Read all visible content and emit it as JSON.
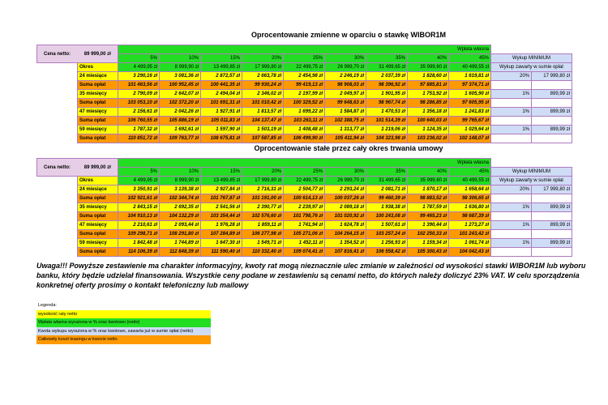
{
  "tables": [
    {
      "title": "Oprocentowanie zmienne w oparciu o stawkę WIBOR1M",
      "cena_label": "Cena netto:",
      "cena_value": "89 999,00 zł",
      "header": "Wpłata własna",
      "percents": [
        "5%",
        "10%",
        "15%",
        "20%",
        "25%",
        "30%",
        "35%",
        "40%",
        "45%"
      ],
      "okres_label": "Okres",
      "okres_values": [
        "4 499,95 zł",
        "8 999,90 zł",
        "13 499,85 zł",
        "17 999,80 zł",
        "22 499,75 zł",
        "26 999,70 zł",
        "31 499,65 zł",
        "35 999,60 zł",
        "40 499,55 zł"
      ],
      "wykup_title": "Wykup MINIMUM",
      "wykup_sub": "Wykup zawarty w sumie opłat",
      "rows": [
        {
          "label": "24 miesiące",
          "type": "rate",
          "values": [
            "3 290,16 zł",
            "3 081,36 zł",
            "2 872,57 zł",
            "2 663,78 zł",
            "2 454,98 zł",
            "2 246,19 zł",
            "2 037,39 zł",
            "1 828,60 zł",
            "1 619,81 zł"
          ],
          "wykup_pct": "20%",
          "wykup_val": "17 999,80 zł"
        },
        {
          "label": "Suma opłat",
          "type": "sum",
          "values": [
            "101 463,56 zł",
            "100 952,45 zł",
            "100 441,35 zł",
            "99 930,24 zł",
            "99 419,13 zł",
            "98 908,03 zł",
            "98 396,92 zł",
            "97 885,81 zł",
            "97 374,71 zł"
          ]
        },
        {
          "label": "35 miesięcy",
          "type": "rate",
          "values": [
            "2 790,09 zł",
            "2 642,07 zł",
            "2 494,04 zł",
            "2 346,02 zł",
            "2 197,99 zł",
            "2 049,97 zł",
            "1 901,95 zł",
            "1 753,92 zł",
            "1 605,90 zł"
          ],
          "wykup_pct": "1%",
          "wykup_val": "899,99 zł"
        },
        {
          "label": "Suma opłat",
          "type": "sum",
          "values": [
            "103 053,10 zł",
            "102 372,20 zł",
            "101 691,31 zł",
            "101 010,42 zł",
            "100 329,52 zł",
            "99 648,63 zł",
            "98 967,74 zł",
            "98 286,85 zł",
            "97 605,95 zł"
          ]
        },
        {
          "label": "47 miesięcy",
          "type": "rate",
          "values": [
            "2 156,61 zł",
            "2 042,26 zł",
            "1 927,91 zł",
            "1 813,57 zł",
            "1 699,22 zł",
            "1 584,87 zł",
            "1 470,53 zł",
            "1 356,18 zł",
            "1 241,83 zł"
          ],
          "wykup_pct": "1%",
          "wykup_val": "899,99 zł"
        },
        {
          "label": "Suma opłat",
          "type": "sum",
          "values": [
            "106 760,55 zł",
            "105 886,19 zł",
            "105 011,83 zł",
            "104 137,47 zł",
            "103 263,11 zł",
            "102 388,75 zł",
            "101 514,39 zł",
            "100 640,03 zł",
            "99 765,67 zł"
          ]
        },
        {
          "label": "59 miesięcy",
          "type": "rate",
          "values": [
            "1 787,32 zł",
            "1 692,61 zł",
            "1 597,90 zł",
            "1 503,19 zł",
            "1 408,48 zł",
            "1 313,77 zł",
            "1 219,06 zł",
            "1 124,35 zł",
            "1 029,64 zł"
          ],
          "wykup_pct": "1%",
          "wykup_val": "899,99 zł"
        },
        {
          "label": "Suma opłat",
          "type": "sum",
          "values": [
            "110 851,72 zł",
            "109 763,77 zł",
            "108 675,81 zł",
            "107 587,85 zł",
            "106 499,90 zł",
            "105 411,94 zł",
            "104 323,98 zł",
            "103 236,02 zł",
            "102 148,07 zł"
          ]
        }
      ]
    },
    {
      "title": "Oprocentowanie stałe przez cały okres trwania umowy",
      "cena_label": "Cena netto:",
      "cena_value": "89 999,00 zł",
      "header": "Wpłata własna",
      "percents": [
        "5%",
        "10%",
        "15%",
        "20%",
        "25%",
        "30%",
        "35%",
        "40%",
        "45%"
      ],
      "okres_label": "Okres",
      "okres_values": [
        "4 499,95 zł",
        "8 999,90 zł",
        "13 499,85 zł",
        "17 999,80 zł",
        "22 499,75 zł",
        "26 999,70 zł",
        "31 499,65 zł",
        "35 999,60 zł",
        "40 499,55 zł"
      ],
      "wykup_title": "Wykup MINIMUM",
      "wykup_sub": "Wykup zawarty w sumie opłat",
      "rows": [
        {
          "label": "24 miesiące",
          "type": "rate",
          "values": [
            "3 350,91 zł",
            "3 139,38 zł",
            "2 927,84 zł",
            "2 716,31 zł",
            "2 504,77 zł",
            "2 293,24 zł",
            "2 081,71 zł",
            "1 870,17 zł",
            "1 658,64 zł"
          ],
          "wykup_pct": "20%",
          "wykup_val": "17 999,80 zł"
        },
        {
          "label": "Suma opłat",
          "type": "sum",
          "values": [
            "102 921,61 zł",
            "102 344,74 zł",
            "101 767,87 zł",
            "101 191,00 zł",
            "100 614,13 zł",
            "100 037,26 zł",
            "99 460,39 zł",
            "98 883,52 zł",
            "98 306,65 zł"
          ]
        },
        {
          "label": "35 miesięcy",
          "type": "rate",
          "values": [
            "2 843,15 zł",
            "2 692,35 zł",
            "2 541,56 zł",
            "2 390,77 zł",
            "2 239,97 zł",
            "2 089,18 zł",
            "1 938,38 zł",
            "1 787,59 zł",
            "1 636,80 zł"
          ],
          "wykup_pct": "1%",
          "wykup_val": "899,99 zł"
        },
        {
          "label": "Suma opłat",
          "type": "sum",
          "values": [
            "104 910,13 zł",
            "104 132,29 zł",
            "103 354,44 zł",
            "102 576,60 zł",
            "101 798,76 zł",
            "101 020,92 zł",
            "100 243,08 zł",
            "99 465,23 zł",
            "98 687,39 zł"
          ]
        },
        {
          "label": "47 miesięcy",
          "type": "rate",
          "values": [
            "2 210,61 zł",
            "2 093,44 zł",
            "1 976,28 zł",
            "1 859,11 zł",
            "1 741,94 zł",
            "1 624,78 zł",
            "1 507,61 zł",
            "1 390,44 zł",
            "1 273,27 zł"
          ],
          "wykup_pct": "1%",
          "wykup_val": "899,99 zł"
        },
        {
          "label": "Suma opłat",
          "type": "sum",
          "values": [
            "109 298,71 zł",
            "108 291,80 zł",
            "107 284,89 zł",
            "106 277,98 zł",
            "105 271,06 zł",
            "104 264,15 zł",
            "103 257,24 zł",
            "102 250,33 zł",
            "101 243,42 zł"
          ]
        },
        {
          "label": "59 miesięcy",
          "type": "rate",
          "values": [
            "1 842,48 zł",
            "1 744,89 zł",
            "1 647,30 zł",
            "1 549,71 zł",
            "1 452,11 zł",
            "1 354,52 zł",
            "1 256,93 zł",
            "1 159,34 zł",
            "1 061,74 zł"
          ],
          "wykup_pct": "1%",
          "wykup_val": "899,99 zł"
        },
        {
          "label": "Suma opłat",
          "type": "sum",
          "values": [
            "114 106,39 zł",
            "112 848,39 zł",
            "111 590,40 zł",
            "110 332,40 zł",
            "109 074,41 zł",
            "107 816,41 zł",
            "106 558,42 zł",
            "105 300,43 zł",
            "104 042,43 zł"
          ]
        }
      ]
    }
  ],
  "note": "Uwaga!!! Powyższe zestawienie ma charakter informacyjny, kwoty rat mogą nieznacznie ulec zmianie w zależności od wysokości stawki WIBOR1M lub wyboru banku, który będzie udzielał finansowania. Wszystkie ceny podane w zestawieniu są cenami netto, do których należy doliczyć 23% VAT. W celu sporządzenia konkretnej oferty prosimy o kontakt telefoniczny lub mailowy",
  "legend": {
    "title": "Legenda:",
    "items": [
      {
        "label": "wysokość raty netto",
        "color": "#ffff00"
      },
      {
        "label": "Wpłata własna wyrażona w % oraz kwotowo (netto)",
        "color": "#22dd22"
      },
      {
        "label": "Kwota wykupu wyrażona w % oraz kwotowo, zawarta już w sumie opłat (netto)",
        "color": "#cfdcf5"
      },
      {
        "label": "Całkowity koszt leasingu w kwocie netto",
        "color": "#ff9900"
      }
    ]
  }
}
